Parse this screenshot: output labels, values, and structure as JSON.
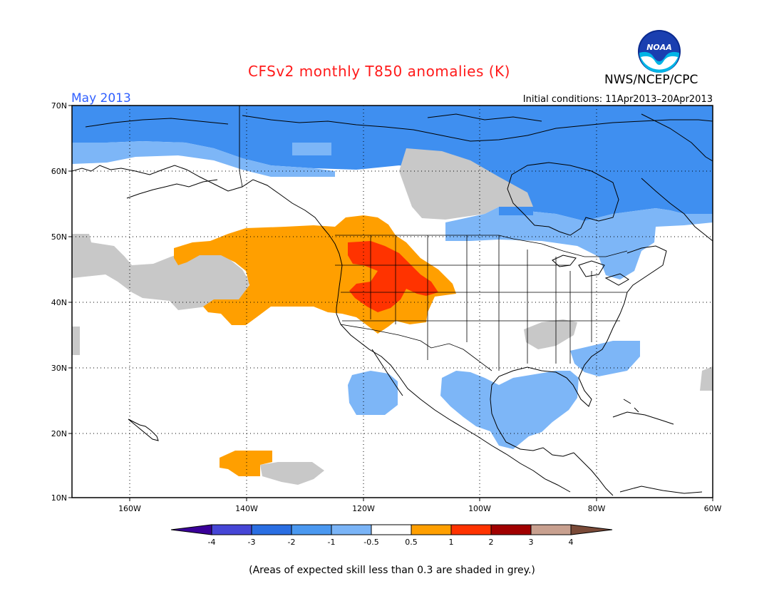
{
  "header": {
    "title": "CFSv2 monthly T850 anomalies (K)",
    "organization": "NWS/NCEP/CPC",
    "logo_text": "NOAA",
    "target_month": "May 2013",
    "initial_conditions": "Initial conditions: 11Apr2013–20Apr2013"
  },
  "map": {
    "lat_labels": [
      "70N",
      "60N",
      "50N",
      "40N",
      "30N",
      "20N",
      "10N"
    ],
    "lon_labels": [
      "160W",
      "140W",
      "120W",
      "100W",
      "80W",
      "60W"
    ]
  },
  "legend": {
    "labels": [
      "-4",
      "-3",
      "-2",
      "-1",
      "-0.5",
      "0.5",
      "1",
      "2",
      "3",
      "4"
    ],
    "colors": [
      "#3a0099",
      "#4646d6",
      "#2a6ee2",
      "#4a98f0",
      "#7ab4f7",
      "#ffffff",
      "#ff9f00",
      "#ff3300",
      "#a10000",
      "#c8a08f",
      "#7a4a38"
    ]
  },
  "colors": {
    "blue_dark": "#3f8ff0",
    "blue_light": "#7db6f7",
    "grey": "#c8c8c8",
    "orange": "#ff9f00",
    "red": "#ff3300"
  },
  "footer": {
    "note": "(Areas of expected skill less than 0.3 are shaded in grey.)"
  }
}
